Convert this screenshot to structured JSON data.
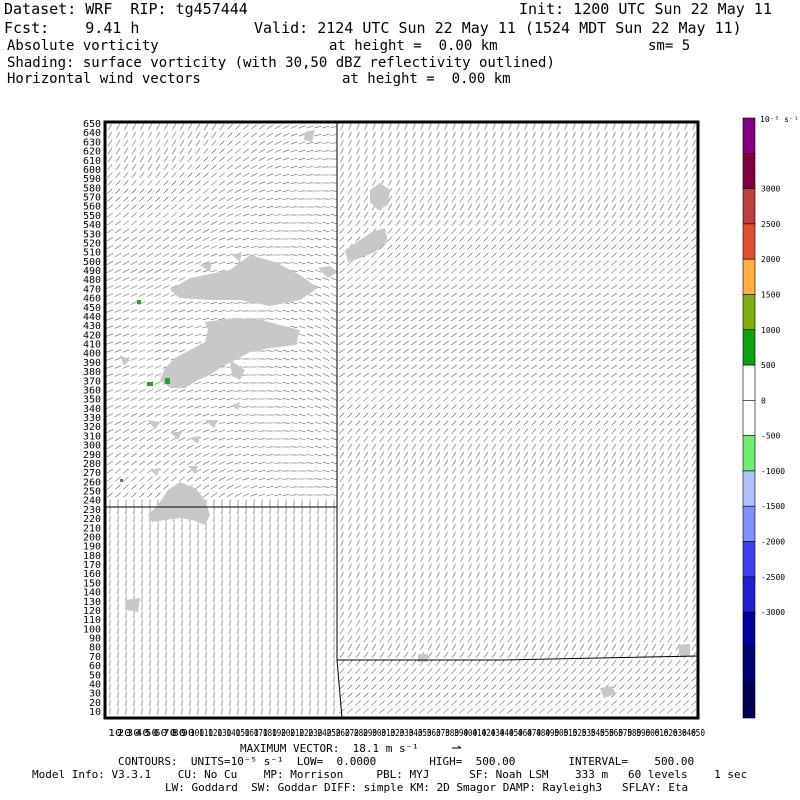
{
  "header": {
    "dataset": "Dataset: WRF  RIP: tg457444",
    "init": "Init: 1200 UTC Sun 22 May 11",
    "fcst": "Fcst:    9.41 h",
    "valid": "Valid: 2124 UTC Sun 22 May 11 (1524 MDT Sun 22 May 11)",
    "line3_left": "Absolute vorticity",
    "line3_mid": "at height =  0.00 km",
    "line3_right": "sm= 5",
    "line4": "Shading: surface vorticity (with 30,50 dBZ reflectivity outlined)",
    "line5_left": "Horizontal wind vectors",
    "line5_mid": "at height =  0.00 km"
  },
  "plot": {
    "y_ticks": [
      "650",
      "640",
      "630",
      "620",
      "610",
      "600",
      "590",
      "580",
      "570",
      "560",
      "550",
      "540",
      "530",
      "520",
      "510",
      "500",
      "490",
      "480",
      "470",
      "460",
      "450",
      "440",
      "430",
      "420",
      "410",
      "400",
      "390",
      "380",
      "370",
      "360",
      "350",
      "340",
      "330",
      "320",
      "310",
      "300",
      "290",
      "280",
      "270",
      "260",
      "250",
      "240",
      "230",
      "220",
      "210",
      "200",
      "190",
      "180",
      "170",
      "160",
      "150",
      "140",
      "130",
      "120",
      "110",
      "100",
      "90",
      "80",
      "70",
      "60",
      "50",
      "40",
      "30",
      "20",
      "10"
    ],
    "x_ticks": [
      "10",
      "20",
      "30",
      "40",
      "50",
      "60",
      "70",
      "80",
      "90",
      "100",
      "110",
      "120",
      "130",
      "140",
      "150",
      "160",
      "170",
      "180",
      "190",
      "200",
      "210",
      "220",
      "230",
      "240",
      "250",
      "260",
      "270",
      "280",
      "290",
      "300",
      "310",
      "320",
      "330",
      "340",
      "350",
      "360",
      "370",
      "380",
      "390",
      "400",
      "410",
      "420",
      "430",
      "440",
      "450",
      "460",
      "470",
      "480",
      "490",
      "500",
      "510",
      "520",
      "530",
      "540",
      "550",
      "560",
      "570",
      "580",
      "590",
      "600",
      "610",
      "620",
      "630",
      "640",
      "650"
    ],
    "background_color": "#ffffff",
    "shading_gray": "#c8c8c8",
    "green": "#2ca02c"
  },
  "legend": {
    "units": "10⁻⁵ s⁻¹",
    "labels": [
      "3000",
      "2500",
      "2000",
      "1500",
      "1000",
      "500",
      "0",
      "-500",
      "-1000",
      "-1500",
      "-2000",
      "-2500",
      "-3000"
    ],
    "colors": [
      "#800080",
      "#800040",
      "#c04040",
      "#e05030",
      "#ffb040",
      "#80b010",
      "#10a010",
      "#ffffff",
      "#ffffff",
      "#70ee70",
      "#b0c0ff",
      "#8090ff",
      "#4040f0",
      "#2020d0",
      "#0000a0",
      "#000070",
      "#000050"
    ]
  },
  "footer": {
    "max_vector": "MAXIMUM VECTOR:  18.1 m s⁻¹",
    "contours": "CONTOURS:  UNITS=10⁻⁵ s⁻¹  LOW=  0.0000        HIGH=  500.00        INTERVAL=    500.00",
    "model_info": "Model Info: V3.3.1    CU: No Cu    MP: Morrison     PBL: MYJ      SF: Noah LSM    333 m   60 levels    1 sec",
    "model_info2": "LW: Goddard  SW: Goddar DIFF: simple KM: 2D Smagor DAMP: Rayleigh3   SFLAY: Eta"
  }
}
